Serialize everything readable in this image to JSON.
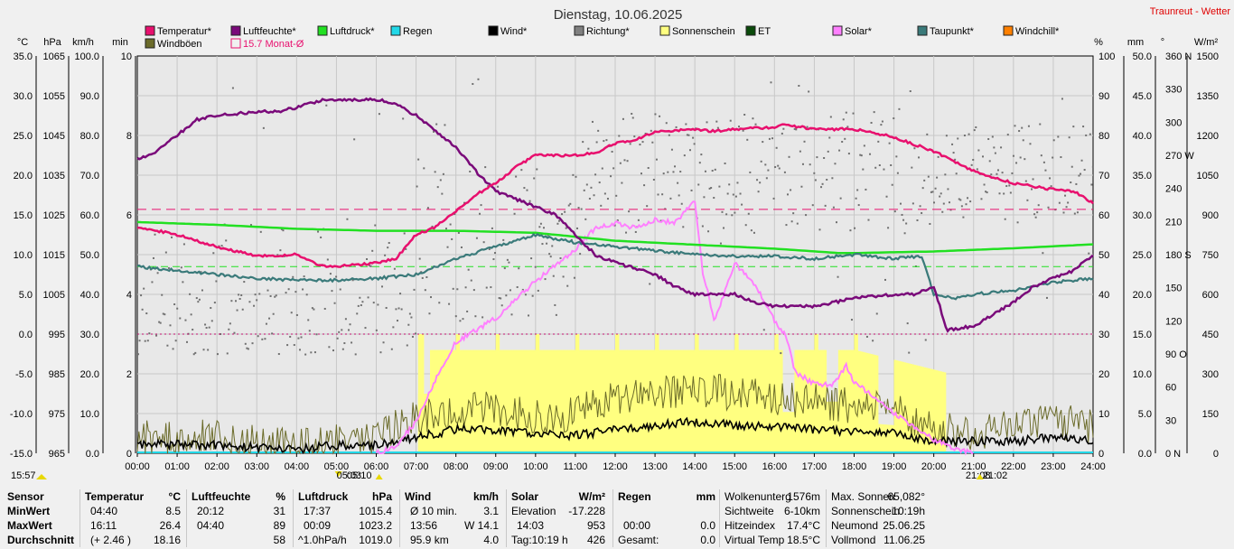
{
  "title": "Dienstag, 10.06.2025",
  "brand": "Traunreut - Wetter",
  "colors": {
    "temperature": "#e8106e",
    "humidity": "#7a0a7a",
    "pressure": "#22e022",
    "rain": "#22d8e8",
    "wind": "#000000",
    "direction": "#808080",
    "sunshine": "#ffff80",
    "et": "#0a4a0a",
    "solar": "#ff80ff",
    "dewpoint": "#3a7a7a",
    "windchill": "#ff8000",
    "gusts": "#6b6b2a",
    "monthly_avg": "#e8106e"
  },
  "legend": [
    {
      "id": "temp",
      "label": "Temperatur*",
      "color": "#e8106e"
    },
    {
      "id": "hum",
      "label": "Luftfeuchte*",
      "color": "#7a0a7a"
    },
    {
      "id": "press",
      "label": "Luftdruck*",
      "color": "#22e022"
    },
    {
      "id": "rain",
      "label": "Regen",
      "color": "#22d8e8"
    },
    {
      "id": "wind",
      "label": "Wind*",
      "color": "#000000"
    },
    {
      "id": "dir",
      "label": "Richtung*",
      "color": "#808080"
    },
    {
      "id": "sun",
      "label": "Sonnenschein",
      "color": "#ffff80"
    },
    {
      "id": "et",
      "label": "ET",
      "color": "#0a4a0a"
    },
    {
      "id": "solar",
      "label": "Solar*",
      "color": "#ff80ff"
    },
    {
      "id": "dew",
      "label": "Taupunkt*",
      "color": "#3a7a7a"
    },
    {
      "id": "chill",
      "label": "Windchill*",
      "color": "#ff8000"
    },
    {
      "id": "gust",
      "label": "Windböen",
      "color": "#6b6b2a"
    },
    {
      "id": "mavg",
      "label": "15.7 Monat-Ø",
      "color": "#e8106e"
    }
  ],
  "axis_units": {
    "left": [
      "°C",
      "hPa",
      "km/h",
      "min"
    ],
    "right": [
      "%",
      "mm",
      "°",
      "W/m²"
    ]
  },
  "chart_data": {
    "type": "line",
    "x_labels": [
      "00:00",
      "01:00",
      "02:00",
      "03:00",
      "04:00",
      "05:00",
      "06:00",
      "07:00",
      "08:00",
      "09:00",
      "10:00",
      "11:00",
      "12:00",
      "13:00",
      "14:00",
      "15:00",
      "16:00",
      "17:00",
      "18:00",
      "19:00",
      "20:00",
      "21:00",
      "22:00",
      "23:00",
      "24:00"
    ],
    "axes": {
      "temp_c": [
        "35.0",
        "30.0",
        "25.0",
        "20.0",
        "15.0",
        "10.0",
        "5.0",
        "0.0",
        "-5.0",
        "-10.0",
        "-15.0"
      ],
      "pressure_hpa": [
        "1065",
        "1055",
        "1045",
        "1035",
        "1025",
        "1015",
        "1005",
        "995",
        "985",
        "975",
        "965"
      ],
      "wind_kmh": [
        "100.0",
        "90.0",
        "80.0",
        "70.0",
        "60.0",
        "50.0",
        "40.0",
        "30.0",
        "20.0",
        "10.0",
        "0.0"
      ],
      "sunshine_min": [
        "10",
        "8",
        "6",
        "4",
        "2",
        "0"
      ],
      "humidity_pct": [
        "100",
        "90",
        "80",
        "70",
        "60",
        "50",
        "40",
        "30",
        "20",
        "10",
        "0"
      ],
      "rain_mm": [
        "50.0",
        "45.0",
        "40.0",
        "35.0",
        "30.0",
        "25.0",
        "20.0",
        "15.0",
        "10.0",
        "5.0",
        "0.0"
      ],
      "direction_deg": [
        "360 N",
        "330",
        "300",
        "270 W",
        "240",
        "210",
        "180 S",
        "150",
        "120",
        "90 O",
        "60",
        "30",
        "0 N"
      ],
      "solar_wm2": [
        "1500",
        "1350",
        "1200",
        "1050",
        "900",
        "750",
        "600",
        "450",
        "300",
        "150",
        "0"
      ]
    },
    "ranges": {
      "temp": [
        -15,
        35
      ],
      "humidity": [
        0,
        100
      ],
      "pressure": [
        965,
        1065
      ],
      "wind": [
        0,
        100
      ],
      "solar": [
        0,
        1500
      ],
      "direction": [
        0,
        360
      ],
      "sunshine": [
        0,
        10
      ]
    },
    "series": [
      {
        "name": "Temperatur",
        "unit": "°C",
        "points": [
          [
            0,
            13.5
          ],
          [
            1,
            12.5
          ],
          [
            2,
            11
          ],
          [
            3,
            9.8
          ],
          [
            4,
            10
          ],
          [
            4.67,
            8.5
          ],
          [
            5,
            8.5
          ],
          [
            6,
            9
          ],
          [
            6.5,
            9.5
          ],
          [
            7,
            12.5
          ],
          [
            7.5,
            13.5
          ],
          [
            8,
            15.5
          ],
          [
            8.5,
            17.5
          ],
          [
            9,
            19
          ],
          [
            9.5,
            21
          ],
          [
            10,
            22.5
          ],
          [
            11,
            22.5
          ],
          [
            11.5,
            22.8
          ],
          [
            12,
            24
          ],
          [
            12.5,
            24.5
          ],
          [
            13,
            25.5
          ],
          [
            14,
            25.8
          ],
          [
            14.5,
            25.5
          ],
          [
            15,
            25.8
          ],
          [
            16,
            26
          ],
          [
            16.18,
            26.4
          ],
          [
            17,
            25.8
          ],
          [
            18,
            25.8
          ],
          [
            19,
            24.8
          ],
          [
            20,
            23
          ],
          [
            21,
            20.5
          ],
          [
            22,
            19
          ],
          [
            23,
            18.2
          ],
          [
            23.5,
            18
          ],
          [
            24,
            16.5
          ]
        ]
      },
      {
        "name": "Luftfeuchte",
        "unit": "%",
        "points": [
          [
            0,
            74
          ],
          [
            0.5,
            76
          ],
          [
            1,
            80
          ],
          [
            1.5,
            84
          ],
          [
            2,
            85
          ],
          [
            3,
            86
          ],
          [
            3.5,
            86
          ],
          [
            4,
            87
          ],
          [
            4.67,
            89
          ],
          [
            5,
            89
          ],
          [
            6,
            89
          ],
          [
            6.5,
            88
          ],
          [
            7,
            85
          ],
          [
            8,
            77
          ],
          [
            8.5,
            71
          ],
          [
            9,
            66
          ],
          [
            10,
            62
          ],
          [
            10.5,
            60
          ],
          [
            11,
            55
          ],
          [
            11.5,
            50
          ],
          [
            12,
            48
          ],
          [
            13,
            45
          ],
          [
            13.5,
            42
          ],
          [
            14,
            40
          ],
          [
            14.5,
            40
          ],
          [
            15,
            40
          ],
          [
            15.5,
            38
          ],
          [
            16,
            37
          ],
          [
            17,
            37
          ],
          [
            18,
            39
          ],
          [
            19,
            40
          ],
          [
            19.5,
            40
          ],
          [
            20,
            42
          ],
          [
            20.33,
            31
          ],
          [
            21,
            32
          ],
          [
            21.5,
            35
          ],
          [
            22,
            38
          ],
          [
            22.5,
            42
          ],
          [
            23,
            44
          ],
          [
            23.5,
            46
          ],
          [
            24,
            50
          ]
        ]
      },
      {
        "name": "Luftdruck",
        "unit": "hPa",
        "points": [
          [
            0,
            1023.2
          ],
          [
            2,
            1022.5
          ],
          [
            4,
            1021.5
          ],
          [
            6,
            1021
          ],
          [
            8,
            1021
          ],
          [
            10,
            1020.5
          ],
          [
            12,
            1018.5
          ],
          [
            14,
            1017.5
          ],
          [
            16,
            1016.5
          ],
          [
            17.63,
            1015.4
          ],
          [
            18,
            1015.4
          ],
          [
            20,
            1015.8
          ],
          [
            22,
            1016.6
          ],
          [
            24,
            1017.6
          ]
        ]
      },
      {
        "name": "Taupunkt",
        "unit": "°C",
        "points": [
          [
            0,
            8.5
          ],
          [
            1,
            8
          ],
          [
            2,
            7.5
          ],
          [
            3,
            7
          ],
          [
            4,
            6.8
          ],
          [
            5,
            6.8
          ],
          [
            6,
            7
          ],
          [
            7,
            7.5
          ],
          [
            8,
            9.5
          ],
          [
            9,
            11
          ],
          [
            10,
            12.5
          ],
          [
            11,
            11.5
          ],
          [
            12,
            11
          ],
          [
            13,
            10.5
          ],
          [
            14,
            10
          ],
          [
            15,
            9.8
          ],
          [
            16,
            9.8
          ],
          [
            17,
            9.5
          ],
          [
            18,
            10
          ],
          [
            19,
            9.5
          ],
          [
            19.7,
            9.8
          ],
          [
            20,
            5
          ],
          [
            20.5,
            4.5
          ],
          [
            21,
            5
          ],
          [
            22,
            5.5
          ],
          [
            23,
            6.5
          ],
          [
            24,
            7
          ]
        ]
      },
      {
        "name": "Solar",
        "unit": "W/m²",
        "points": [
          [
            6,
            0
          ],
          [
            6.5,
            30
          ],
          [
            7,
            120
          ],
          [
            7.5,
            280
          ],
          [
            8,
            420
          ],
          [
            9,
            510
          ],
          [
            10,
            650
          ],
          [
            11,
            770
          ],
          [
            11.5,
            850
          ],
          [
            12,
            870
          ],
          [
            12.5,
            850
          ],
          [
            13,
            880
          ],
          [
            13.5,
            870
          ],
          [
            14,
            953
          ],
          [
            14.2,
            680
          ],
          [
            14.5,
            500
          ],
          [
            15,
            720
          ],
          [
            15.5,
            640
          ],
          [
            16,
            500
          ],
          [
            16.3,
            440
          ],
          [
            16.5,
            310
          ],
          [
            17,
            260
          ],
          [
            17.5,
            260
          ],
          [
            17.8,
            330
          ],
          [
            18,
            270
          ],
          [
            18.5,
            210
          ],
          [
            19,
            150
          ],
          [
            19.5,
            100
          ],
          [
            20,
            50
          ],
          [
            20.5,
            20
          ],
          [
            21,
            0
          ]
        ]
      },
      {
        "name": "Wind",
        "unit": "km/h",
        "points": [
          [
            0,
            2
          ],
          [
            1,
            2.3
          ],
          [
            2,
            2
          ],
          [
            3,
            1.5
          ],
          [
            4,
            1
          ],
          [
            5,
            2
          ],
          [
            6,
            2
          ],
          [
            7,
            4
          ],
          [
            8,
            6
          ],
          [
            9,
            6
          ],
          [
            10,
            5
          ],
          [
            11,
            4.5
          ],
          [
            12,
            6
          ],
          [
            13,
            7
          ],
          [
            14,
            8
          ],
          [
            15,
            7
          ],
          [
            16,
            6.5
          ],
          [
            17,
            6
          ],
          [
            18,
            5.5
          ],
          [
            19,
            5
          ],
          [
            20,
            3
          ],
          [
            21,
            3
          ],
          [
            22,
            3
          ],
          [
            23,
            4
          ],
          [
            24,
            3
          ]
        ]
      },
      {
        "name": "Windböen",
        "unit": "km/h",
        "points": [
          [
            0,
            4
          ],
          [
            2,
            4
          ],
          [
            4,
            2
          ],
          [
            6,
            4
          ],
          [
            7,
            9
          ],
          [
            8,
            11
          ],
          [
            9,
            11
          ],
          [
            10,
            9
          ],
          [
            11,
            10
          ],
          [
            12,
            14
          ],
          [
            13,
            15
          ],
          [
            14,
            16
          ],
          [
            15,
            15
          ],
          [
            16,
            14
          ],
          [
            17,
            13
          ],
          [
            18,
            12
          ],
          [
            19,
            11
          ],
          [
            20,
            6
          ],
          [
            21,
            5
          ],
          [
            22,
            7
          ],
          [
            23,
            8
          ],
          [
            24,
            7
          ]
        ]
      }
    ],
    "monthly_avg_c": 15.7,
    "reference_lines_c": [
      15.7,
      8.5,
      0.0
    ]
  },
  "markers": {
    "sunrise": "05:03",
    "sunrise_bar": "05:10",
    "sunset": "21:08",
    "sunset_bar": "21:02",
    "left_time": "15:57"
  },
  "stats": {
    "headers": {
      "sensor": "Sensor",
      "min": "MinWert",
      "max": "MaxWert",
      "avg": "Durchschnitt"
    },
    "temperature": {
      "title": "Temperatur",
      "unit": "°C",
      "min_time": "04:40",
      "min": "8.5",
      "max_time": "16:11",
      "max": "26.4",
      "avg_note": "(+ 2.46 )",
      "avg": "18.16"
    },
    "humidity": {
      "title": "Luftfeuchte",
      "unit": "%",
      "min_time": "20:12",
      "min": "31",
      "max_time": "04:40",
      "max": "89",
      "avg": "58"
    },
    "pressure": {
      "title": "Luftdruck",
      "unit": "hPa",
      "min_time": "17:37",
      "min": "1015.4",
      "max_time": "00:09",
      "max": "1023.2",
      "avg_note": "^1.0hPa/h",
      "avg": "1019.0"
    },
    "wind": {
      "title": "Wind",
      "unit": "km/h",
      "r1_label": "Ø 10 min.",
      "r1": "3.1",
      "r2_time": "13:56",
      "r2": "W 14.1",
      "r3_label": "95.9 km",
      "r3": "4.0"
    },
    "solar": {
      "title": "Solar",
      "unit": "W/m²",
      "r1_label": "Elevation",
      "r1": "-17.228",
      "r2_time": "14:03",
      "r2": "953",
      "r3_label": "Tag:10:19 h",
      "r3": "426"
    },
    "rain": {
      "title": "Regen",
      "unit": "mm",
      "r2_time": "00:00",
      "r2": "0.0",
      "r3_label": "Gesamt:",
      "r3": "0.0"
    },
    "misc1": [
      [
        "Wolkenunterg",
        "1576m"
      ],
      [
        "Sichtweite",
        "6-10km"
      ],
      [
        "Hitzeindex",
        "17.4°C"
      ],
      [
        "Virtual Temp",
        "18.5°C"
      ]
    ],
    "misc2": [
      [
        "Max. Sonnen",
        "65,082°"
      ],
      [
        "Sonnenschein",
        "10:19h"
      ],
      [
        "Neumond",
        "25.06.25"
      ],
      [
        "Vollmond",
        "11.06.25"
      ]
    ]
  }
}
